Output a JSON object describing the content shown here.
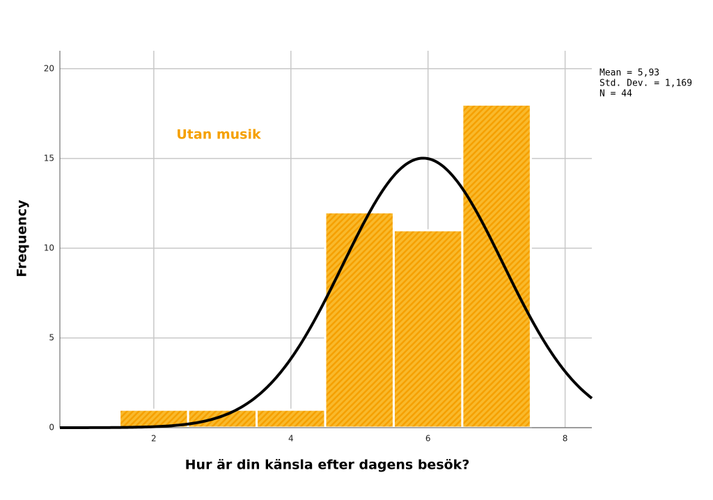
{
  "chart_data": {
    "type": "histogram",
    "annotation": "Utan musik",
    "x_label": "Hur är din känsla efter dagens besök?",
    "y_label": "Frequency",
    "bins": [
      1.5,
      2.5,
      3.5,
      4.5,
      5.5,
      6.5,
      7.5
    ],
    "values": [
      1,
      1,
      1,
      12,
      11,
      18
    ],
    "color": "#f9b92c",
    "hatch_color": "#f5a000",
    "curve_color": "#000000",
    "xlim": [
      0.63,
      8.39
    ],
    "ylim": [
      0,
      21
    ],
    "xticks": [
      2,
      4,
      6,
      8
    ],
    "yticks": [
      0,
      5,
      10,
      15,
      20
    ],
    "grid": true,
    "stats": [
      {
        "value": 5.93,
        "label": "Mean = 5,93"
      },
      {
        "value": 1.169,
        "label": "Std. Dev. = 1,169"
      },
      {
        "value": 44,
        "label": "N = 44"
      }
    ]
  }
}
